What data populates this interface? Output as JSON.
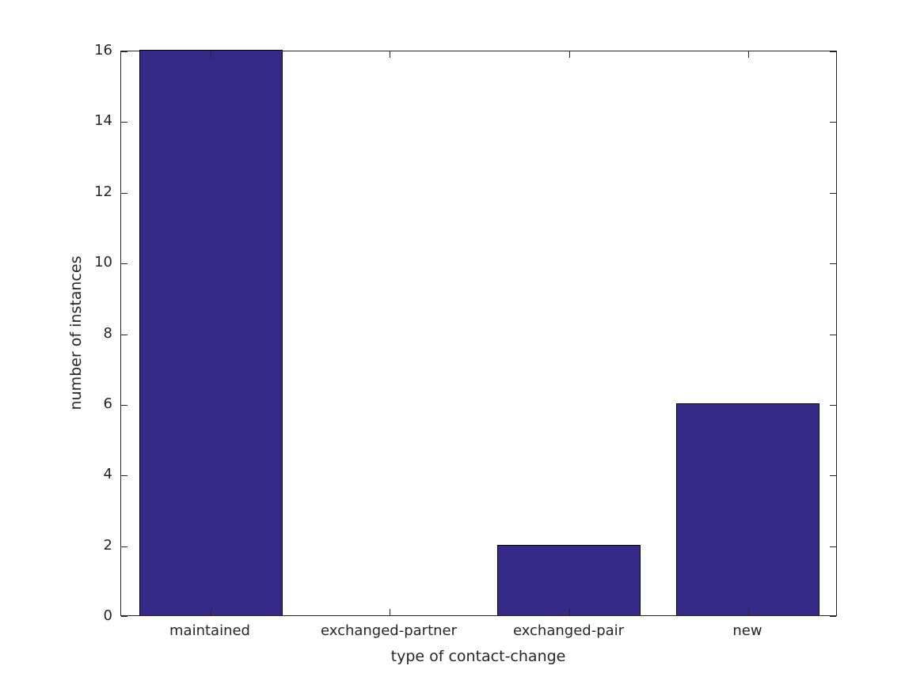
{
  "chart_data": {
    "type": "bar",
    "title": "",
    "categories": [
      "maintained",
      "exchanged-partner",
      "exchanged-pair",
      "new"
    ],
    "values": [
      16,
      0,
      2,
      6
    ],
    "xlabel": "type of contact-change",
    "ylabel": "number of instances",
    "ylim": [
      0,
      16
    ],
    "yticks": [
      0,
      2,
      4,
      6,
      8,
      10,
      12,
      14,
      16
    ],
    "bar_width_fraction": 0.8,
    "grid": false,
    "legend": null,
    "colors": {
      "bar_fill": "#352A87",
      "bar_edge": "#000000",
      "axis": "#262626",
      "text": "#262626",
      "background": "#ffffff"
    }
  }
}
